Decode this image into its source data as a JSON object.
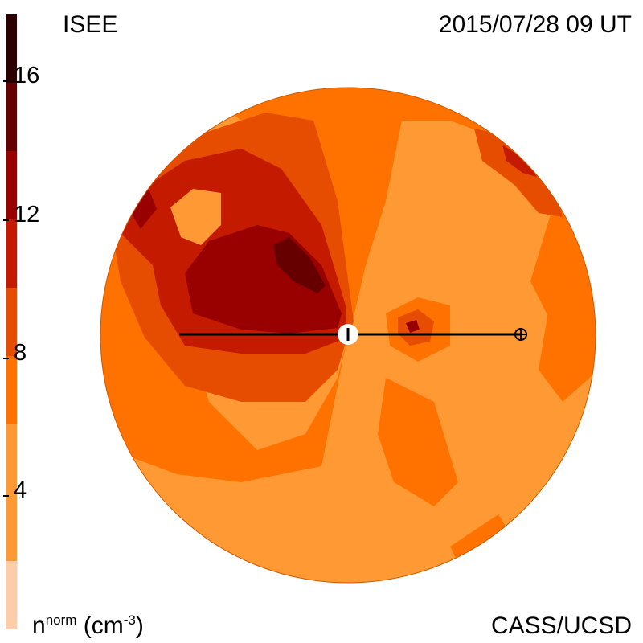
{
  "header": {
    "title": "ISEE",
    "timestamp": "2015/07/28 09 UT"
  },
  "footer": {
    "unit_main": "n",
    "unit_sup": "norm",
    "unit_tail": " (cm",
    "unit_exp": "-3",
    "unit_close": ")",
    "credit": "CASS/UCSD"
  },
  "colorbar": {
    "labels": [
      "16",
      "12",
      "8",
      "4"
    ],
    "levels": [
      {
        "color": "#ffccaa"
      },
      {
        "color": "#ff9933"
      },
      {
        "color": "#ff7200"
      },
      {
        "color": "#e64d00"
      },
      {
        "color": "#c41a00"
      },
      {
        "color": "#990000"
      },
      {
        "color": "#660000"
      },
      {
        "color": "#2b0000"
      }
    ]
  },
  "map": {
    "fill_colors": {
      "base": "#ff9933",
      "mid": "#ff7200",
      "high": "#e64d00",
      "higher": "#c41a00",
      "peak": "#990000",
      "max": "#660000"
    },
    "markers": {
      "sun_icon": "sun-marker-icon",
      "earth_icon": "earth-marker-icon"
    }
  }
}
